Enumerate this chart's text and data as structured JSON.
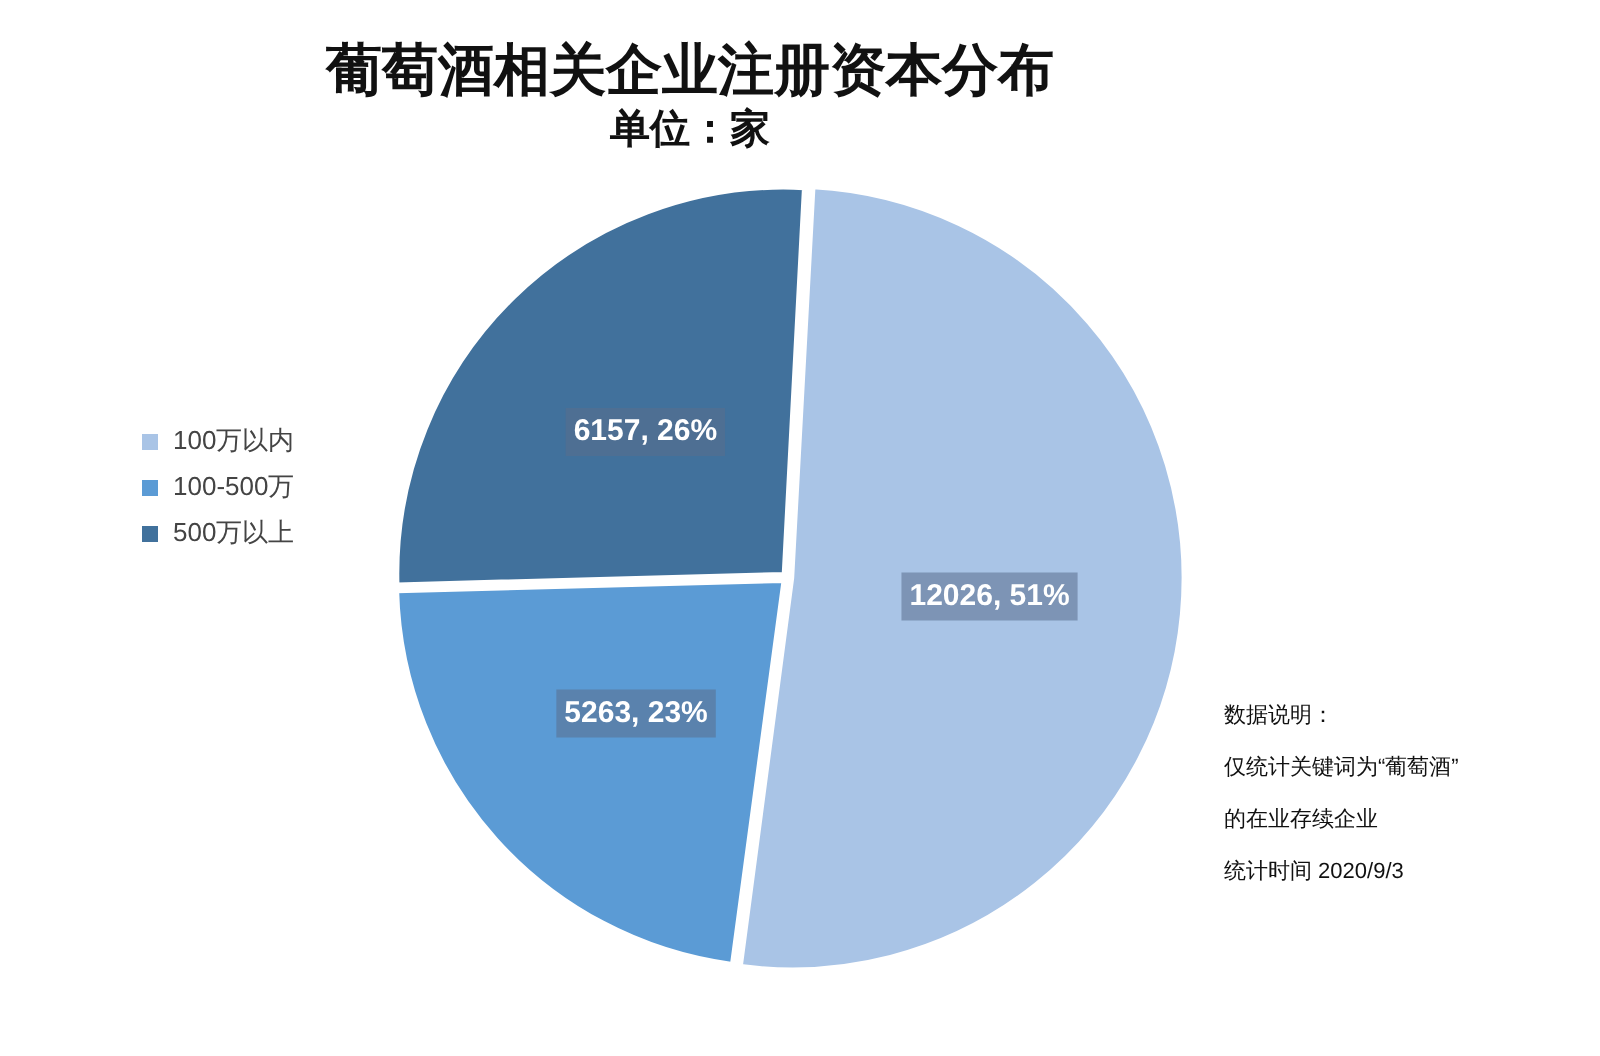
{
  "chart_data": {
    "type": "pie",
    "title": "葡萄酒相关企业注册资本分布",
    "subtitle": "单位：家",
    "categories": [
      "100万以内",
      "100-500万",
      "500万以上"
    ],
    "values": [
      12026,
      5263,
      6157
    ],
    "colors": [
      "#a9c4e6",
      "#5b9bd5",
      "#41719c"
    ],
    "value_labels": [
      "12026, 51%",
      "5263, 23%",
      "6157, 26%"
    ],
    "legend": "left",
    "annotations": [
      "数据说明：",
      "仅统计关键词为“葡萄酒”",
      "的在业存续企业",
      "统计时间 2020/9/3"
    ]
  }
}
